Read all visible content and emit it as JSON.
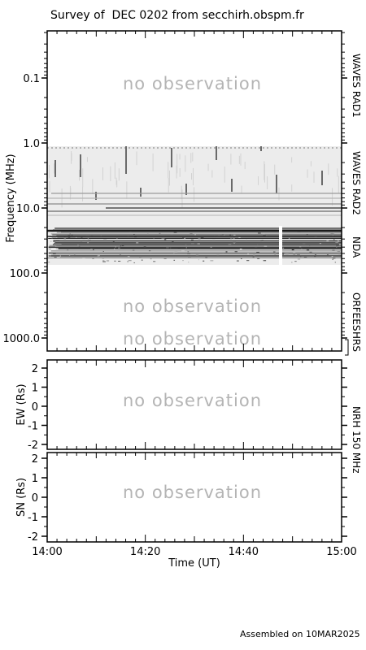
{
  "title": "Survey of  DEC 0202 from secchirh.obspm.fr",
  "footer": "Assembled on 10MAR2025",
  "no_observation_text": "no observation",
  "colors": {
    "axis": "#000000",
    "no_obs": "#b4b4b4",
    "spectrum_bg": "#ececec",
    "burst": "#6a6a6a"
  },
  "chart_data": [
    {
      "panel": "spectrogram",
      "type": "heatmap",
      "ylabel": "Frequency (MHz)",
      "yscale": "log",
      "yinvert": true,
      "ylim": [
        0.02,
        1500
      ],
      "yticks": [
        "0.1",
        "1.0",
        "10.0",
        "100.0",
        "1000.0"
      ],
      "xlim": [
        "14:00",
        "15:00"
      ],
      "instruments": [
        {
          "name": "WAVES RAD1",
          "freq_range_mhz": [
            0.02,
            1.075
          ],
          "observed": false
        },
        {
          "name": "WAVES RAD2",
          "freq_range_mhz": [
            1.075,
            13.8
          ],
          "observed": true
        },
        {
          "name": "NDA",
          "freq_range_mhz": [
            13.8,
            80
          ],
          "observed": true
        },
        {
          "name": "ORFEES",
          "freq_range_mhz": [
            140,
            1000
          ],
          "observed": false
        },
        {
          "name": "HRS",
          "freq_range_mhz": [
            1000,
            1500
          ],
          "observed": false
        }
      ],
      "nda_data_gap_utc": [
        "14:47",
        "14:48"
      ]
    },
    {
      "panel": "nrh_ew",
      "type": "line",
      "ylabel": "EW (Rs)",
      "ylim": [
        -2,
        2
      ],
      "yticks": [
        "2",
        "1",
        "0",
        "-1",
        "-2"
      ],
      "observed": false
    },
    {
      "panel": "nrh_sn",
      "type": "line",
      "ylabel": "SN (Rs)",
      "ylim": [
        -2,
        2
      ],
      "yticks": [
        "2",
        "1",
        "0",
        "-1",
        "-2"
      ],
      "xlabel": "Time (UT)",
      "xticks": [
        "14:00",
        "14:20",
        "14:40",
        "15:00"
      ],
      "observed": false
    }
  ],
  "nrh_label": "NRH 150 MHz"
}
